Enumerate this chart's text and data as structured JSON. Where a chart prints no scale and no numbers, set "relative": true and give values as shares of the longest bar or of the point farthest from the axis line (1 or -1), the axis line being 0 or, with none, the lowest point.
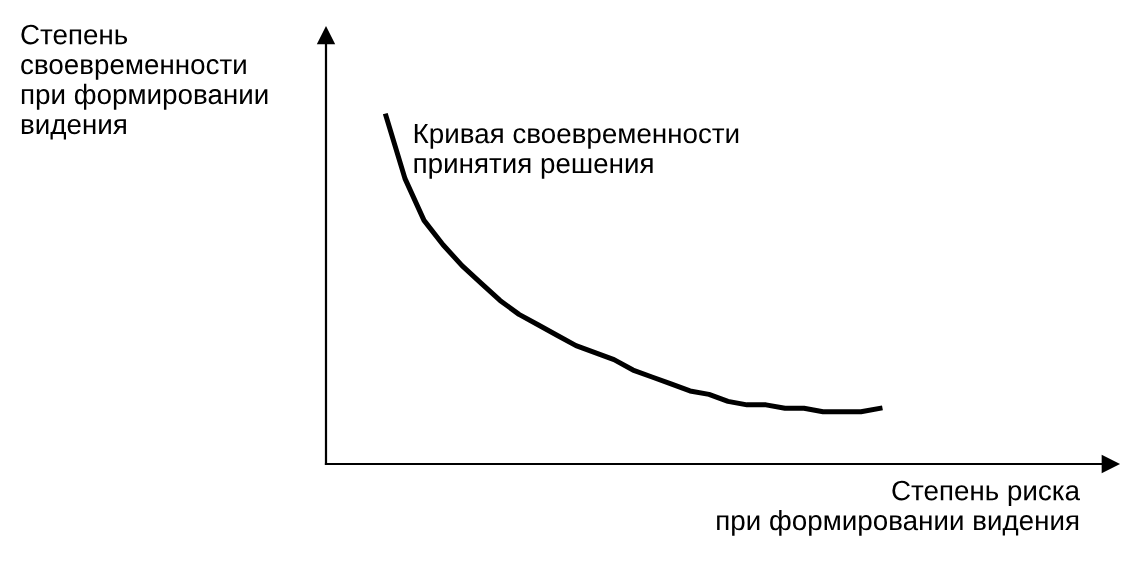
{
  "chart_data": {
    "type": "line",
    "relative": true,
    "xlabel": "Степень риска\nпри формировании видения",
    "ylabel": "Степень\nсвоевременности\nпри формировании\nвидения",
    "categories": [
      null,
      null,
      null,
      null,
      null,
      null,
      null,
      null,
      null,
      null,
      null,
      null,
      null,
      null,
      null,
      null,
      null,
      null,
      null,
      null,
      null,
      null,
      null,
      null,
      null,
      null,
      null
    ],
    "series": [
      {
        "name": "Кривая своевременности\nпринятия решения",
        "color": "#000000",
        "values": [
          1,
          0.82,
          0.7,
          0.63,
          0.57,
          0.52,
          0.47,
          0.43,
          0.4,
          0.37,
          0.34,
          0.32,
          0.3,
          0.27,
          0.25,
          0.23,
          0.21,
          0.2,
          0.18,
          0.17,
          0.17,
          0.16,
          0.16,
          0.15,
          0.15,
          0.15,
          0.16
        ]
      }
    ],
    "legend": false,
    "marker": "none",
    "line_style": "solid"
  }
}
